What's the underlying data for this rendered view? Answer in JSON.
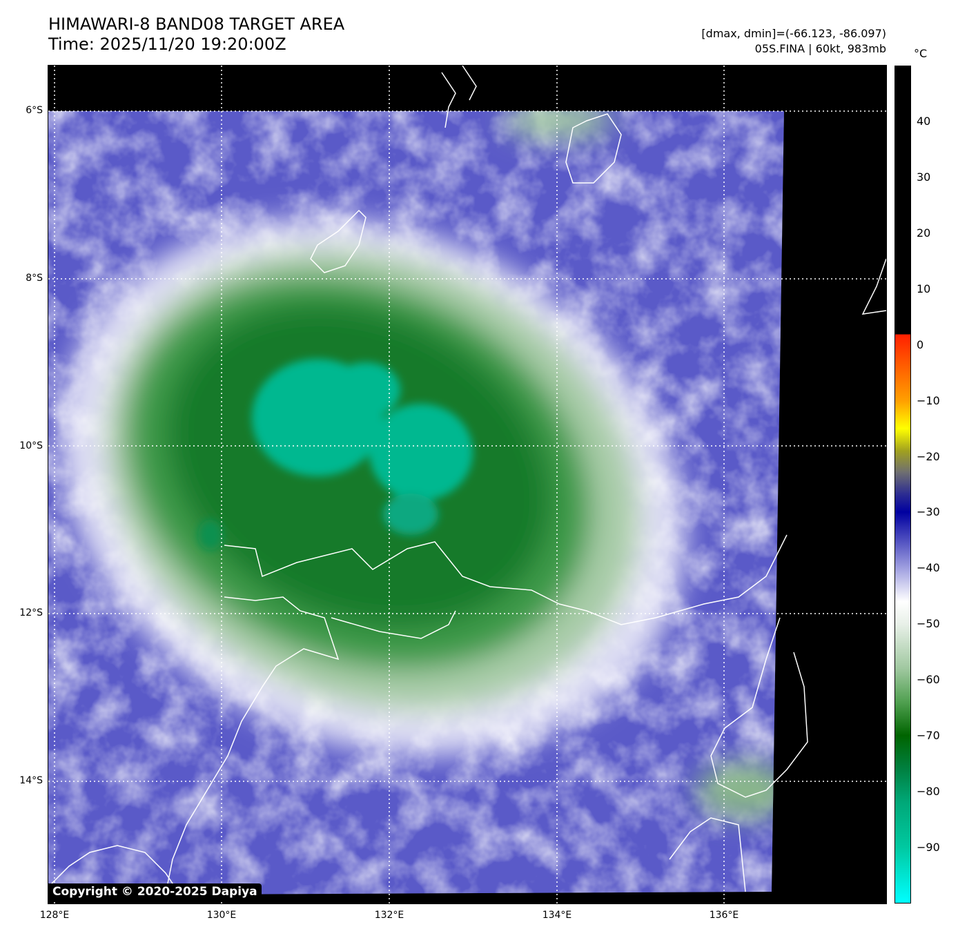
{
  "header": {
    "title": "HIMAWARI-8 BAND08 TARGET AREA",
    "time": "Time: 2025/11/20 19:20:00Z",
    "range": "[dmax, dmin]=(-66.123, -86.097)",
    "storm": "05S.FINA | 60kt, 983mb"
  },
  "colorbar": {
    "unit": "°C",
    "ticks": [
      "40",
      "30",
      "20",
      "10",
      "0",
      "−10",
      "−20",
      "−30",
      "−40",
      "−50",
      "−60",
      "−70",
      "−80",
      "−90"
    ],
    "tick_values": [
      40,
      30,
      20,
      10,
      0,
      -10,
      -20,
      -30,
      -40,
      -50,
      -60,
      -70,
      -80,
      -90
    ],
    "range": [
      -100,
      50
    ]
  },
  "axes": {
    "lat_labels": [
      "6°S",
      "8°S",
      "10°S",
      "12°S",
      "14°S"
    ],
    "lon_labels": [
      "128°E",
      "130°E",
      "132°E",
      "134°E",
      "136°E"
    ]
  },
  "copyright": "Copyright © 2020-2025 Dapiya",
  "colors": {
    "cloud_base": "#5a5ac8",
    "cold_top": "#00c8a0",
    "mid": "#1a7a2a"
  }
}
